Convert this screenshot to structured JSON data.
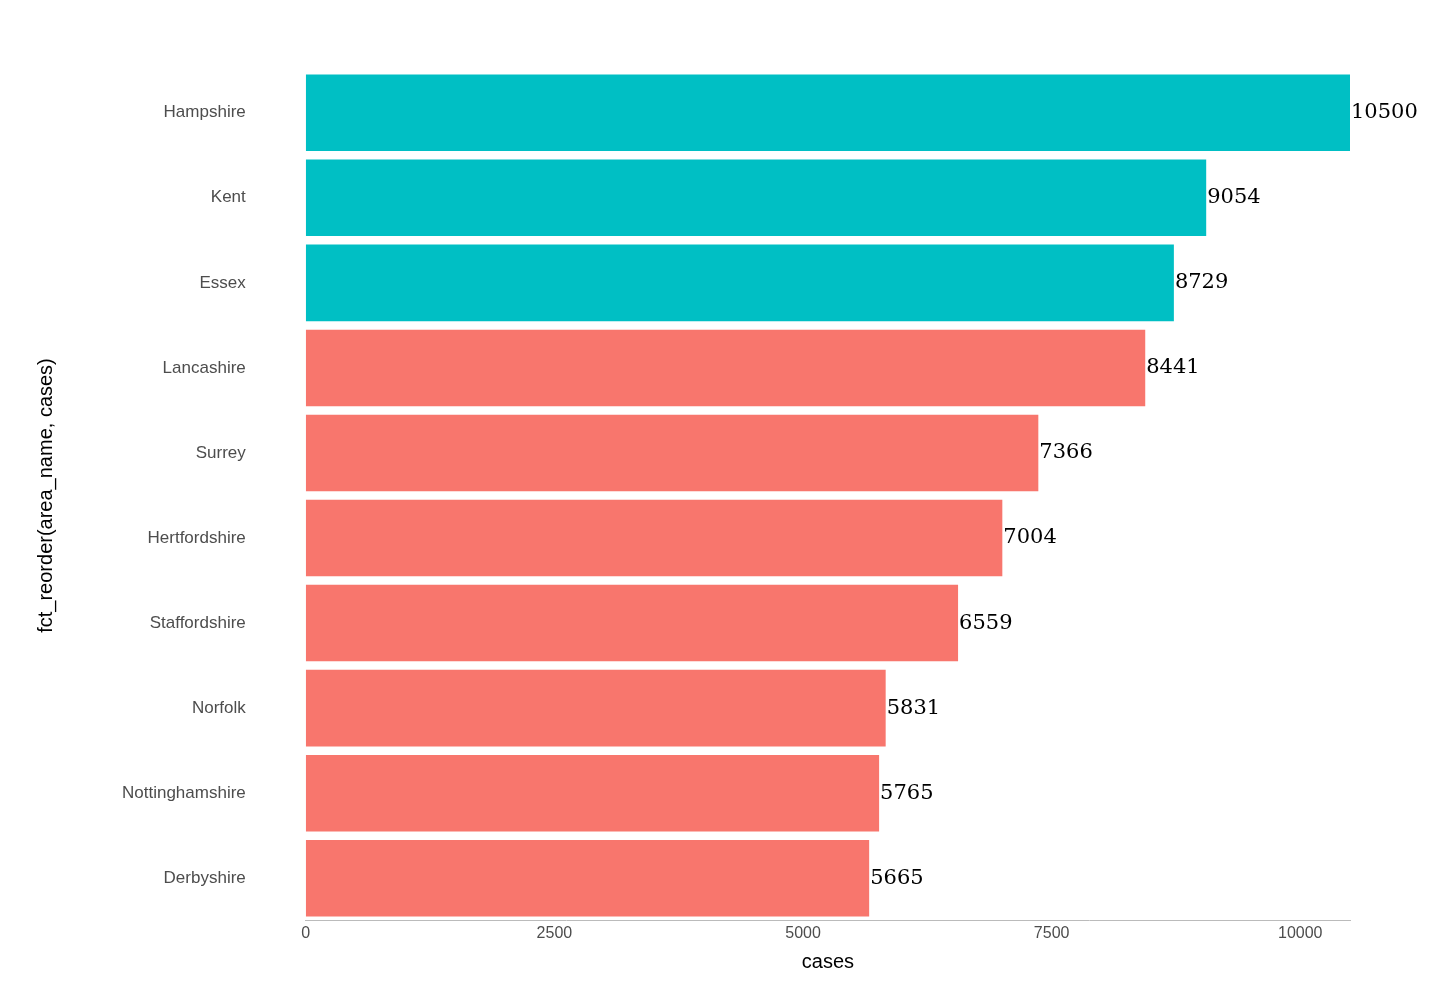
{
  "chart_data": {
    "type": "bar",
    "orientation": "horizontal",
    "x_label": "cases",
    "y_label": "fct_reorder(area_name, cases)",
    "categories": [
      "Hampshire",
      "Kent",
      "Essex",
      "Lancashire",
      "Surrey",
      "Hertfordshire",
      "Staffordshire",
      "Norfolk",
      "Nottinghamshire",
      "Derbyshire"
    ],
    "values": [
      10500,
      9054,
      8729,
      8441,
      7366,
      7004,
      6559,
      5831,
      5765,
      5665
    ],
    "colors": [
      "#00BFC4",
      "#00BFC4",
      "#00BFC4",
      "#F8766D",
      "#F8766D",
      "#F8766D",
      "#F8766D",
      "#F8766D",
      "#F8766D",
      "#F8766D"
    ],
    "xlim": [
      0,
      10500
    ],
    "xticks": [
      0,
      2500,
      5000,
      7500,
      10000
    ],
    "grid": false,
    "data_labels": true
  }
}
